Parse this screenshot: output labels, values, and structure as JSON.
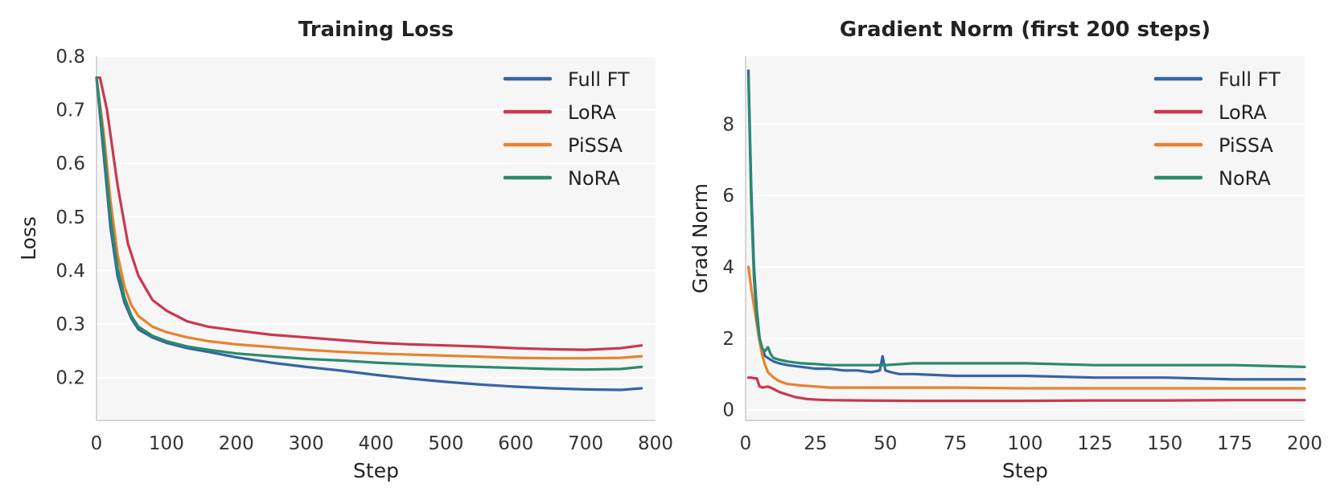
{
  "chart_data": [
    {
      "type": "line",
      "title": "Training Loss",
      "xlabel": "Step",
      "ylabel": "Loss",
      "xlim": [
        0,
        800
      ],
      "ylim": [
        0.12,
        0.8
      ],
      "xticks": [
        0,
        100,
        200,
        300,
        400,
        500,
        600,
        700,
        800
      ],
      "yticks": [
        0.2,
        0.3,
        0.4,
        0.5,
        0.6,
        0.7,
        0.8
      ],
      "xtick_labels": [
        "0",
        "100",
        "200",
        "300",
        "400",
        "500",
        "600",
        "700",
        "800"
      ],
      "ytick_labels": [
        "0.2",
        "0.3",
        "0.4",
        "0.5",
        "0.6",
        "0.7",
        "0.8"
      ],
      "grid": "horizontal",
      "legend_position": "top-right",
      "series": [
        {
          "name": "Full FT",
          "color": "#3465a4",
          "x": [
            0,
            10,
            20,
            30,
            40,
            50,
            60,
            80,
            100,
            130,
            160,
            200,
            250,
            300,
            350,
            400,
            450,
            500,
            550,
            600,
            650,
            700,
            750,
            780
          ],
          "y": [
            0.76,
            0.62,
            0.48,
            0.39,
            0.34,
            0.31,
            0.29,
            0.275,
            0.265,
            0.255,
            0.248,
            0.238,
            0.228,
            0.22,
            0.213,
            0.205,
            0.198,
            0.192,
            0.187,
            0.183,
            0.18,
            0.178,
            0.177,
            0.18
          ]
        },
        {
          "name": "LoRA",
          "color": "#c9384f",
          "x": [
            0,
            5,
            15,
            30,
            45,
            60,
            80,
            100,
            130,
            160,
            200,
            250,
            300,
            350,
            400,
            450,
            500,
            550,
            600,
            650,
            700,
            750,
            780
          ],
          "y": [
            0.76,
            0.76,
            0.7,
            0.56,
            0.45,
            0.39,
            0.345,
            0.325,
            0.305,
            0.295,
            0.288,
            0.28,
            0.275,
            0.27,
            0.265,
            0.262,
            0.26,
            0.258,
            0.255,
            0.253,
            0.252,
            0.255,
            0.26
          ]
        },
        {
          "name": "PiSSA",
          "color": "#e8822e",
          "x": [
            0,
            10,
            20,
            30,
            40,
            50,
            60,
            80,
            100,
            130,
            160,
            200,
            250,
            300,
            350,
            400,
            450,
            500,
            550,
            600,
            650,
            700,
            750,
            780
          ],
          "y": [
            0.76,
            0.66,
            0.53,
            0.43,
            0.37,
            0.335,
            0.315,
            0.295,
            0.285,
            0.275,
            0.268,
            0.262,
            0.257,
            0.252,
            0.248,
            0.245,
            0.243,
            0.241,
            0.239,
            0.237,
            0.236,
            0.236,
            0.237,
            0.24
          ]
        },
        {
          "name": "NoRA",
          "color": "#2a8a6e",
          "x": [
            0,
            10,
            20,
            30,
            40,
            50,
            60,
            80,
            100,
            130,
            160,
            200,
            250,
            300,
            350,
            400,
            450,
            500,
            550,
            600,
            650,
            700,
            750,
            780
          ],
          "y": [
            0.76,
            0.64,
            0.5,
            0.405,
            0.35,
            0.315,
            0.295,
            0.278,
            0.268,
            0.258,
            0.252,
            0.245,
            0.24,
            0.235,
            0.232,
            0.228,
            0.225,
            0.222,
            0.22,
            0.218,
            0.216,
            0.215,
            0.216,
            0.22
          ]
        }
      ]
    },
    {
      "type": "line",
      "title": "Gradient Norm (first 200 steps)",
      "xlabel": "Step",
      "ylabel": "Grad Norm",
      "xlim": [
        0,
        200
      ],
      "ylim": [
        -0.3,
        9.9
      ],
      "xticks": [
        0,
        25,
        50,
        75,
        100,
        125,
        150,
        175,
        200
      ],
      "yticks": [
        0,
        2,
        4,
        6,
        8
      ],
      "xtick_labels": [
        "0",
        "25",
        "50",
        "75",
        "100",
        "125",
        "150",
        "175",
        "200"
      ],
      "ytick_labels": [
        "0",
        "2",
        "4",
        "6",
        "8"
      ],
      "grid": "horizontal",
      "legend_position": "top-right",
      "series": [
        {
          "name": "Full FT",
          "color": "#3465a4",
          "x": [
            1,
            2,
            3,
            4,
            5,
            6,
            7,
            8,
            10,
            12,
            15,
            20,
            25,
            30,
            35,
            40,
            45,
            48,
            49,
            50,
            52,
            55,
            60,
            75,
            100,
            125,
            150,
            175,
            190,
            200
          ],
          "y": [
            9.5,
            6.2,
            4.0,
            2.8,
            2.0,
            1.7,
            1.5,
            1.45,
            1.35,
            1.3,
            1.25,
            1.2,
            1.15,
            1.15,
            1.1,
            1.1,
            1.05,
            1.1,
            1.5,
            1.1,
            1.05,
            1.0,
            1.0,
            0.95,
            0.95,
            0.9,
            0.9,
            0.85,
            0.85,
            0.85
          ]
        },
        {
          "name": "LoRA",
          "color": "#c9384f",
          "x": [
            1,
            2,
            3,
            4,
            5,
            6,
            8,
            10,
            12,
            15,
            18,
            22,
            26,
            30,
            40,
            60,
            80,
            100,
            125,
            150,
            175,
            200
          ],
          "y": [
            0.9,
            0.9,
            0.88,
            0.88,
            0.65,
            0.62,
            0.65,
            0.58,
            0.5,
            0.42,
            0.35,
            0.3,
            0.28,
            0.27,
            0.26,
            0.25,
            0.25,
            0.25,
            0.26,
            0.26,
            0.27,
            0.27
          ]
        },
        {
          "name": "PiSSA",
          "color": "#e8822e",
          "x": [
            1,
            2,
            3,
            4,
            5,
            6,
            7,
            8,
            10,
            12,
            15,
            20,
            25,
            30,
            40,
            50,
            75,
            100,
            125,
            150,
            175,
            200
          ],
          "y": [
            4.0,
            3.4,
            2.9,
            2.4,
            1.9,
            1.5,
            1.25,
            1.05,
            0.9,
            0.8,
            0.72,
            0.68,
            0.65,
            0.62,
            0.62,
            0.62,
            0.62,
            0.6,
            0.6,
            0.6,
            0.6,
            0.6
          ]
        },
        {
          "name": "NoRA",
          "color": "#2a8a6e",
          "x": [
            1,
            2,
            3,
            4,
            5,
            6,
            7,
            8,
            9,
            10,
            12,
            15,
            20,
            25,
            30,
            40,
            50,
            60,
            75,
            100,
            125,
            150,
            175,
            200
          ],
          "y": [
            9.3,
            5.8,
            3.7,
            2.6,
            2.0,
            1.7,
            1.65,
            1.75,
            1.55,
            1.45,
            1.4,
            1.35,
            1.3,
            1.28,
            1.25,
            1.25,
            1.25,
            1.3,
            1.3,
            1.3,
            1.25,
            1.25,
            1.25,
            1.2
          ]
        }
      ]
    }
  ]
}
